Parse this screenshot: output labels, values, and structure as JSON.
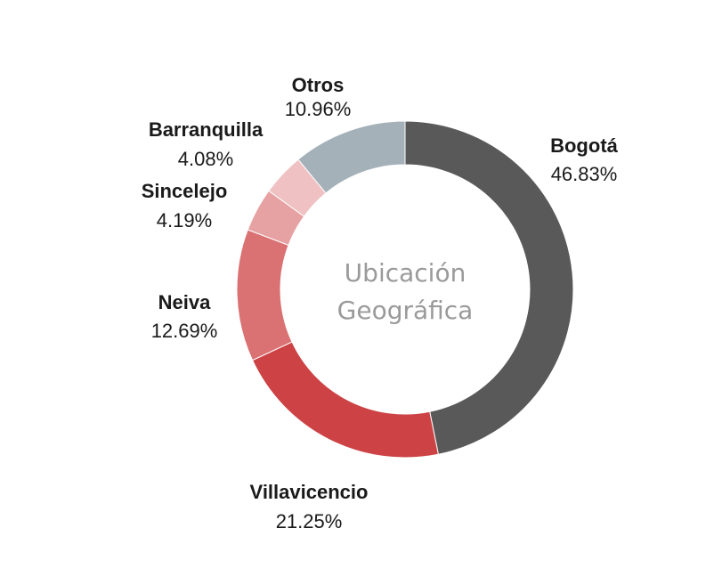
{
  "chart_data": {
    "type": "pie",
    "donut": true,
    "center_label_lines": [
      "Ubicación",
      "Geográfica"
    ],
    "slices": [
      {
        "label": "Bogotá",
        "value": 46.83,
        "value_text": "46.83%",
        "color": "#595959"
      },
      {
        "label": "Villavicencio",
        "value": 21.25,
        "value_text": "21.25%",
        "color": "#cc4245"
      },
      {
        "label": "Neiva",
        "value": 12.69,
        "value_text": "12.69%",
        "color": "#da7173"
      },
      {
        "label": "Sincelejo",
        "value": 4.19,
        "value_text": "4.19%",
        "color": "#e6a1a2"
      },
      {
        "label": "Barranquilla",
        "value": 4.08,
        "value_text": "4.08%",
        "color": "#efc1c2"
      },
      {
        "label": "Otros",
        "value": 10.96,
        "value_text": "10.96%",
        "color": "#a4b1b9"
      }
    ]
  }
}
